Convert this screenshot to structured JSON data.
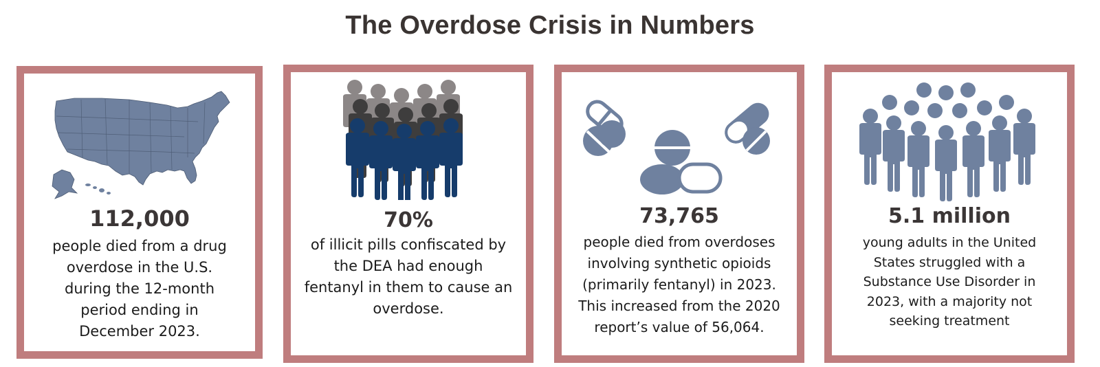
{
  "title": "The Overdose Crisis in Numbers",
  "colors": {
    "card_border": "#bf7d7e",
    "icon_slate": "#6f819f",
    "figure_navy": "#163c6b",
    "figure_dark": "#3e3d3d",
    "figure_gray": "#8c8787"
  },
  "cards": [
    {
      "icon": "us-map-icon",
      "stat": "112,000",
      "lines": [
        "people died from a drug",
        "overdose in the U.S.",
        "during the 12-month",
        "period ending in",
        "December 2023."
      ]
    },
    {
      "icon": "crowd-icon",
      "stat": "70%",
      "lines": [
        "of illicit pills confiscated by",
        "the DEA had enough",
        "fentanyl in them to cause an",
        "overdose."
      ]
    },
    {
      "icon": "pills-icon",
      "stat": "73,765",
      "lines": [
        "people died from overdoses",
        "involving synthetic opioids",
        "(primarily fentanyl) in 2023.",
        "This increased from the 2020",
        "report’s value of 56,064."
      ]
    },
    {
      "icon": "people-group-icon",
      "stat": "5.1 million",
      "lines": [
        "young adults in the United",
        "States struggled with a",
        "Substance Use Disorder in",
        "2023, with a majority not",
        "seeking treatment"
      ]
    }
  ]
}
